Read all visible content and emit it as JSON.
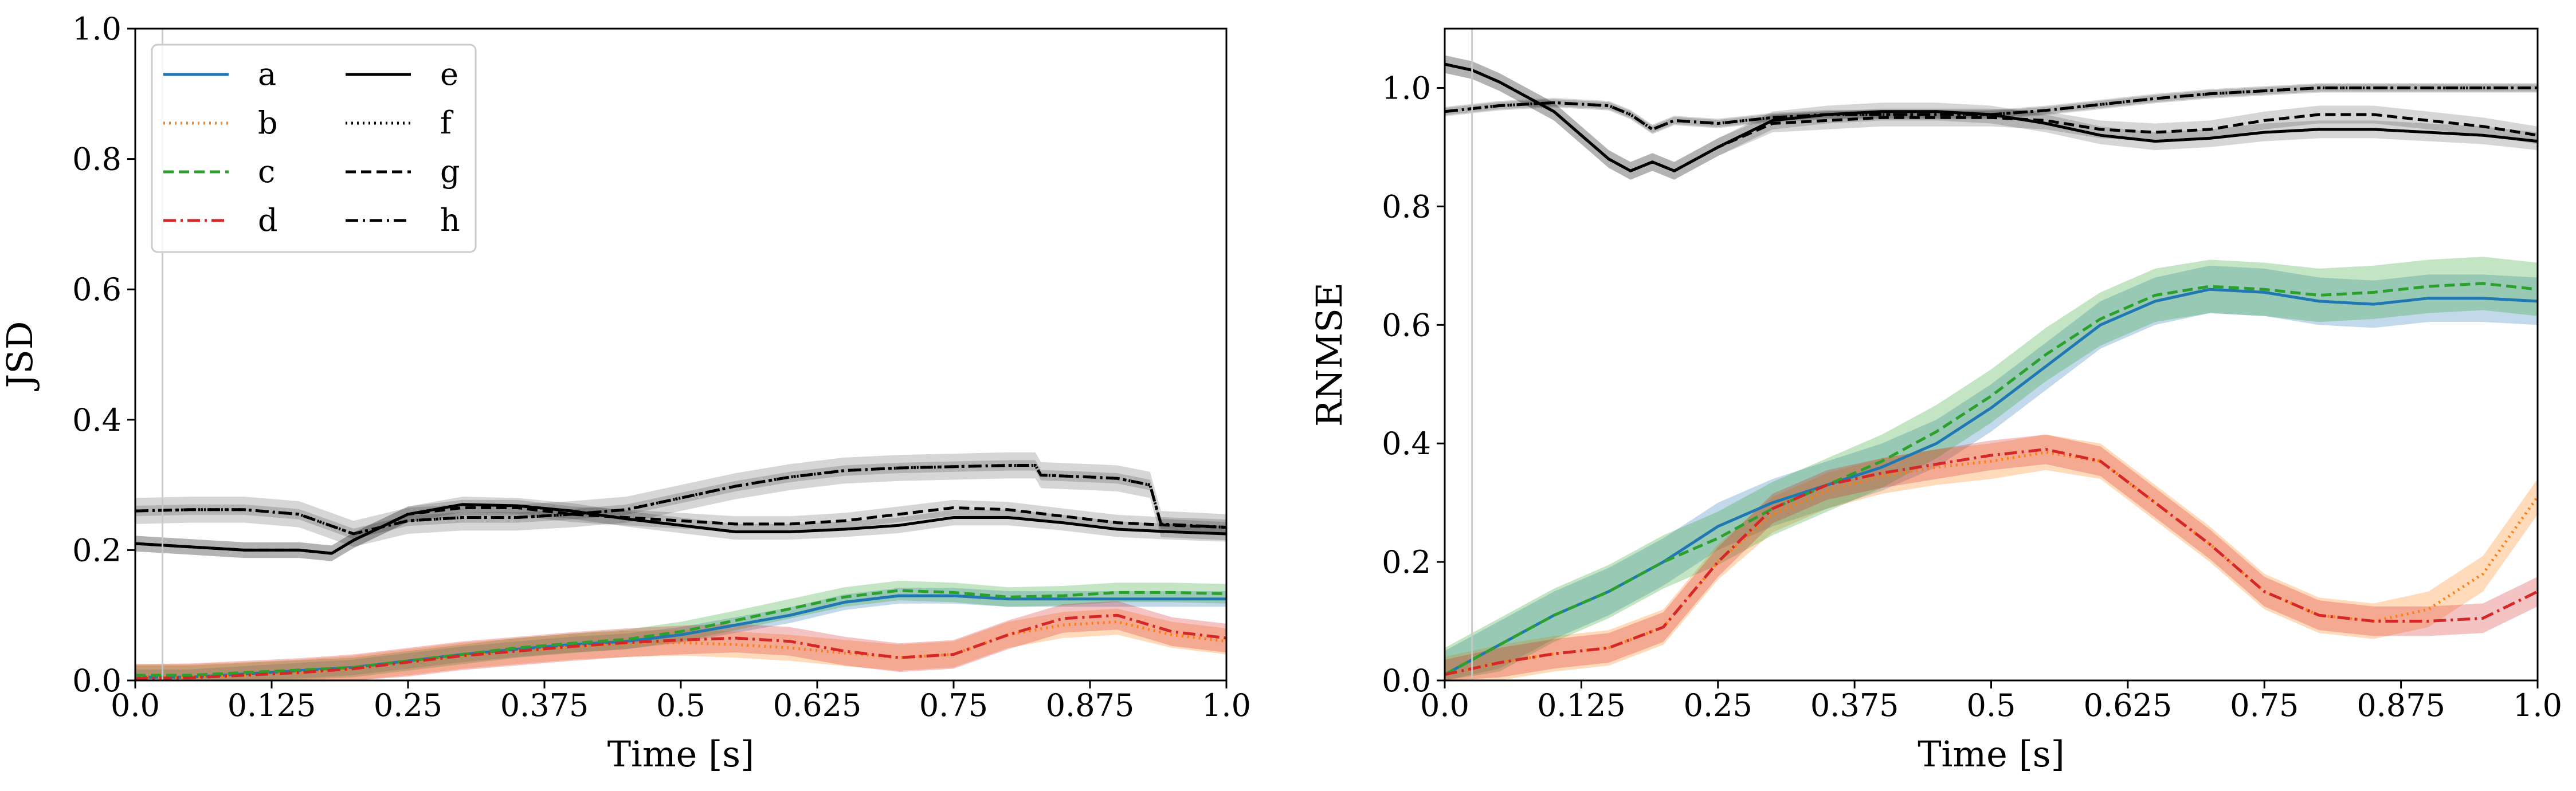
{
  "colors": {
    "a": "#1f77b4",
    "b": "#ff7f0e",
    "c": "#2ca02c",
    "d": "#d62728",
    "e": "#000000",
    "f": "#000000",
    "g": "#000000",
    "h": "#000000"
  },
  "legend": {
    "items": [
      {
        "key": "a",
        "label": "a",
        "dash": "solid"
      },
      {
        "key": "b",
        "label": "b",
        "dash": "dotted"
      },
      {
        "key": "c",
        "label": "c",
        "dash": "dashed"
      },
      {
        "key": "d",
        "label": "d",
        "dash": "dashdot"
      },
      {
        "key": "e",
        "label": "e",
        "dash": "solid"
      },
      {
        "key": "f",
        "label": "f",
        "dash": "dotted"
      },
      {
        "key": "g",
        "label": "g",
        "dash": "dashed"
      },
      {
        "key": "h",
        "label": "h",
        "dash": "dashdot"
      }
    ],
    "placement": "upper-left",
    "columns": 2
  },
  "chart_data": [
    {
      "type": "line",
      "title": "",
      "xlabel": "Time [s]",
      "ylabel": "JSD",
      "xlim": [
        0,
        1
      ],
      "ylim": [
        0,
        1
      ],
      "xticks": [
        0,
        0.125,
        0.25,
        0.375,
        0.5,
        0.625,
        0.75,
        0.875,
        1
      ],
      "xtick_labels": [
        "0.0",
        "0.125",
        "0.25",
        "0.375",
        "0.5",
        "0.625",
        "0.75",
        "0.875",
        "1.0"
      ],
      "yticks": [
        0,
        0.2,
        0.4,
        0.6,
        0.8,
        1.0
      ],
      "ytick_labels": [
        "0.0",
        "0.2",
        "0.4",
        "0.6",
        "0.8",
        "1.0"
      ],
      "vline_x": 0.025,
      "grid": false,
      "legend": true,
      "series": [
        {
          "key": "a",
          "dash": "solid",
          "x": [
            0,
            0.05,
            0.1,
            0.15,
            0.2,
            0.25,
            0.3,
            0.35,
            0.4,
            0.45,
            0.5,
            0.55,
            0.6,
            0.65,
            0.7,
            0.75,
            0.8,
            0.85,
            0.9,
            0.95,
            1.0
          ],
          "y": [
            0.005,
            0.005,
            0.01,
            0.015,
            0.02,
            0.03,
            0.04,
            0.048,
            0.055,
            0.06,
            0.07,
            0.085,
            0.1,
            0.12,
            0.13,
            0.13,
            0.125,
            0.125,
            0.125,
            0.125,
            0.125
          ],
          "band": 0.012
        },
        {
          "key": "b",
          "dash": "dotted",
          "x": [
            0,
            0.05,
            0.1,
            0.15,
            0.2,
            0.25,
            0.3,
            0.35,
            0.4,
            0.45,
            0.5,
            0.55,
            0.6,
            0.65,
            0.7,
            0.75,
            0.8,
            0.85,
            0.9,
            0.95,
            1.0
          ],
          "y": [
            0.005,
            0.005,
            0.008,
            0.012,
            0.018,
            0.028,
            0.038,
            0.045,
            0.052,
            0.056,
            0.058,
            0.055,
            0.05,
            0.042,
            0.035,
            0.04,
            0.07,
            0.085,
            0.09,
            0.07,
            0.06
          ],
          "band": 0.02
        },
        {
          "key": "c",
          "dash": "dashed",
          "x": [
            0,
            0.05,
            0.1,
            0.15,
            0.2,
            0.25,
            0.3,
            0.35,
            0.4,
            0.45,
            0.5,
            0.55,
            0.6,
            0.65,
            0.7,
            0.75,
            0.8,
            0.85,
            0.9,
            0.95,
            1.0
          ],
          "y": [
            0.008,
            0.008,
            0.012,
            0.016,
            0.02,
            0.03,
            0.04,
            0.05,
            0.057,
            0.063,
            0.075,
            0.092,
            0.11,
            0.128,
            0.138,
            0.135,
            0.128,
            0.13,
            0.135,
            0.135,
            0.133
          ],
          "band": 0.015
        },
        {
          "key": "d",
          "dash": "dashdot",
          "x": [
            0,
            0.05,
            0.1,
            0.15,
            0.2,
            0.25,
            0.3,
            0.35,
            0.4,
            0.45,
            0.5,
            0.55,
            0.6,
            0.65,
            0.7,
            0.75,
            0.8,
            0.85,
            0.9,
            0.95,
            1.0
          ],
          "y": [
            0.003,
            0.004,
            0.008,
            0.012,
            0.018,
            0.028,
            0.038,
            0.045,
            0.052,
            0.058,
            0.062,
            0.065,
            0.06,
            0.045,
            0.035,
            0.04,
            0.07,
            0.095,
            0.1,
            0.075,
            0.065
          ],
          "band": 0.022
        },
        {
          "key": "e",
          "dash": "solid",
          "x": [
            0,
            0.05,
            0.1,
            0.15,
            0.18,
            0.2,
            0.25,
            0.3,
            0.35,
            0.4,
            0.45,
            0.5,
            0.55,
            0.6,
            0.65,
            0.7,
            0.75,
            0.8,
            0.85,
            0.9,
            0.95,
            1.0
          ],
          "y": [
            0.21,
            0.205,
            0.2,
            0.2,
            0.195,
            0.215,
            0.255,
            0.27,
            0.268,
            0.26,
            0.248,
            0.238,
            0.228,
            0.228,
            0.232,
            0.238,
            0.25,
            0.25,
            0.242,
            0.232,
            0.228,
            0.225
          ],
          "band": 0.012
        },
        {
          "key": "f",
          "dash": "dotted",
          "x": [
            0,
            0.05,
            0.1,
            0.15,
            0.2,
            0.25,
            0.3,
            0.35,
            0.4,
            0.45,
            0.5,
            0.55,
            0.6,
            0.65,
            0.7,
            0.75,
            0.8,
            0.825,
            0.83,
            0.875,
            0.9,
            0.93,
            0.94,
            1.0
          ],
          "y": [
            0.26,
            0.262,
            0.262,
            0.255,
            0.225,
            0.245,
            0.25,
            0.25,
            0.255,
            0.262,
            0.28,
            0.298,
            0.312,
            0.322,
            0.326,
            0.328,
            0.33,
            0.33,
            0.315,
            0.312,
            0.31,
            0.3,
            0.24,
            0.235
          ],
          "band": 0.008
        },
        {
          "key": "g",
          "dash": "dashed",
          "x": [
            0,
            0.05,
            0.1,
            0.15,
            0.18,
            0.2,
            0.25,
            0.3,
            0.35,
            0.4,
            0.45,
            0.5,
            0.55,
            0.6,
            0.65,
            0.7,
            0.75,
            0.8,
            0.85,
            0.9,
            0.95,
            1.0
          ],
          "y": [
            0.21,
            0.205,
            0.2,
            0.2,
            0.195,
            0.215,
            0.255,
            0.265,
            0.265,
            0.255,
            0.25,
            0.245,
            0.24,
            0.24,
            0.245,
            0.255,
            0.265,
            0.262,
            0.252,
            0.242,
            0.238,
            0.235
          ],
          "band": 0.012
        },
        {
          "key": "h",
          "dash": "dashdot",
          "x": [
            0,
            0.05,
            0.1,
            0.15,
            0.2,
            0.25,
            0.3,
            0.35,
            0.4,
            0.45,
            0.5,
            0.55,
            0.6,
            0.65,
            0.7,
            0.75,
            0.8,
            0.825,
            0.83,
            0.875,
            0.9,
            0.93,
            0.94,
            1.0
          ],
          "y": [
            0.26,
            0.262,
            0.262,
            0.255,
            0.225,
            0.245,
            0.25,
            0.25,
            0.255,
            0.262,
            0.28,
            0.298,
            0.312,
            0.322,
            0.326,
            0.328,
            0.33,
            0.33,
            0.315,
            0.312,
            0.31,
            0.3,
            0.24,
            0.235
          ],
          "band": 0.02
        }
      ]
    },
    {
      "type": "line",
      "title": "",
      "xlabel": "Time [s]",
      "ylabel": "RNMSE",
      "xlim": [
        0,
        1
      ],
      "ylim": [
        0,
        1.1
      ],
      "xticks": [
        0,
        0.125,
        0.25,
        0.375,
        0.5,
        0.625,
        0.75,
        0.875,
        1
      ],
      "xtick_labels": [
        "0.0",
        "0.125",
        "0.25",
        "0.375",
        "0.5",
        "0.625",
        "0.75",
        "0.875",
        "1.0"
      ],
      "yticks": [
        0,
        0.2,
        0.4,
        0.6,
        0.8,
        1.0
      ],
      "ytick_labels": [
        "0.0",
        "0.2",
        "0.4",
        "0.6",
        "0.8",
        "1.0"
      ],
      "vline_x": 0.025,
      "grid": false,
      "legend": false,
      "series": [
        {
          "key": "a",
          "dash": "solid",
          "x": [
            0,
            0.05,
            0.1,
            0.15,
            0.2,
            0.25,
            0.3,
            0.35,
            0.4,
            0.45,
            0.5,
            0.55,
            0.6,
            0.65,
            0.7,
            0.75,
            0.8,
            0.85,
            0.9,
            0.95,
            1.0
          ],
          "y": [
            0.01,
            0.06,
            0.11,
            0.15,
            0.2,
            0.26,
            0.3,
            0.33,
            0.36,
            0.4,
            0.46,
            0.53,
            0.6,
            0.64,
            0.66,
            0.655,
            0.64,
            0.635,
            0.645,
            0.645,
            0.64
          ],
          "band": 0.04
        },
        {
          "key": "b",
          "dash": "dotted",
          "x": [
            0,
            0.05,
            0.1,
            0.15,
            0.2,
            0.25,
            0.3,
            0.35,
            0.4,
            0.45,
            0.5,
            0.55,
            0.6,
            0.65,
            0.7,
            0.75,
            0.8,
            0.85,
            0.9,
            0.95,
            1.0
          ],
          "y": [
            0.01,
            0.03,
            0.045,
            0.055,
            0.09,
            0.2,
            0.28,
            0.32,
            0.345,
            0.36,
            0.37,
            0.385,
            0.37,
            0.3,
            0.23,
            0.15,
            0.11,
            0.1,
            0.12,
            0.18,
            0.31
          ],
          "band": 0.03
        },
        {
          "key": "c",
          "dash": "dashed",
          "x": [
            0,
            0.05,
            0.1,
            0.15,
            0.2,
            0.25,
            0.3,
            0.35,
            0.4,
            0.45,
            0.5,
            0.55,
            0.6,
            0.65,
            0.7,
            0.75,
            0.8,
            0.85,
            0.9,
            0.95,
            1.0
          ],
          "y": [
            0.01,
            0.06,
            0.11,
            0.15,
            0.2,
            0.24,
            0.29,
            0.33,
            0.37,
            0.42,
            0.48,
            0.55,
            0.61,
            0.65,
            0.665,
            0.66,
            0.65,
            0.655,
            0.665,
            0.67,
            0.66
          ],
          "band": 0.045
        },
        {
          "key": "d",
          "dash": "dashdot",
          "x": [
            0,
            0.05,
            0.1,
            0.15,
            0.2,
            0.25,
            0.3,
            0.35,
            0.4,
            0.45,
            0.5,
            0.55,
            0.6,
            0.65,
            0.7,
            0.75,
            0.8,
            0.85,
            0.9,
            0.95,
            1.0
          ],
          "y": [
            0.01,
            0.03,
            0.045,
            0.055,
            0.09,
            0.2,
            0.29,
            0.33,
            0.35,
            0.365,
            0.38,
            0.39,
            0.37,
            0.3,
            0.23,
            0.15,
            0.11,
            0.1,
            0.1,
            0.105,
            0.15
          ],
          "band": 0.025
        },
        {
          "key": "e",
          "dash": "solid",
          "x": [
            0,
            0.025,
            0.05,
            0.1,
            0.15,
            0.17,
            0.19,
            0.21,
            0.25,
            0.3,
            0.35,
            0.4,
            0.45,
            0.5,
            0.55,
            0.6,
            0.65,
            0.7,
            0.75,
            0.8,
            0.85,
            0.9,
            0.95,
            1.0
          ],
          "y": [
            1.04,
            1.03,
            1.01,
            0.96,
            0.88,
            0.86,
            0.875,
            0.86,
            0.9,
            0.945,
            0.955,
            0.96,
            0.96,
            0.955,
            0.94,
            0.92,
            0.91,
            0.915,
            0.925,
            0.93,
            0.93,
            0.925,
            0.92,
            0.91
          ],
          "band": 0.015
        },
        {
          "key": "f",
          "dash": "dotted",
          "x": [
            0,
            0.05,
            0.1,
            0.15,
            0.17,
            0.19,
            0.21,
            0.25,
            0.3,
            0.35,
            0.4,
            0.45,
            0.5,
            0.55,
            0.6,
            0.65,
            0.7,
            0.75,
            0.8,
            0.85,
            0.9,
            0.95,
            1.0
          ],
          "y": [
            0.96,
            0.97,
            0.975,
            0.97,
            0.955,
            0.93,
            0.945,
            0.94,
            0.95,
            0.955,
            0.955,
            0.955,
            0.955,
            0.962,
            0.972,
            0.982,
            0.99,
            0.995,
            1.0,
            1.0,
            1.0,
            1.0,
            1.0
          ],
          "band": 0.006
        },
        {
          "key": "g",
          "dash": "dashed",
          "x": [
            0,
            0.025,
            0.05,
            0.1,
            0.15,
            0.17,
            0.19,
            0.21,
            0.25,
            0.3,
            0.35,
            0.4,
            0.45,
            0.5,
            0.55,
            0.6,
            0.65,
            0.7,
            0.75,
            0.8,
            0.85,
            0.9,
            0.95,
            1.0
          ],
          "y": [
            1.04,
            1.03,
            1.01,
            0.96,
            0.88,
            0.86,
            0.875,
            0.86,
            0.9,
            0.94,
            0.945,
            0.95,
            0.95,
            0.95,
            0.945,
            0.93,
            0.925,
            0.93,
            0.945,
            0.955,
            0.955,
            0.945,
            0.935,
            0.92
          ],
          "band": 0.015
        },
        {
          "key": "h",
          "dash": "dashdot",
          "x": [
            0,
            0.05,
            0.1,
            0.15,
            0.17,
            0.19,
            0.21,
            0.25,
            0.3,
            0.35,
            0.4,
            0.45,
            0.5,
            0.55,
            0.6,
            0.65,
            0.7,
            0.75,
            0.8,
            0.85,
            0.9,
            0.95,
            1.0
          ],
          "y": [
            0.96,
            0.97,
            0.975,
            0.97,
            0.955,
            0.93,
            0.945,
            0.94,
            0.95,
            0.955,
            0.955,
            0.955,
            0.955,
            0.962,
            0.972,
            0.982,
            0.99,
            0.995,
            1.0,
            1.0,
            1.0,
            1.0,
            1.0
          ],
          "band": 0.008
        }
      ]
    }
  ]
}
